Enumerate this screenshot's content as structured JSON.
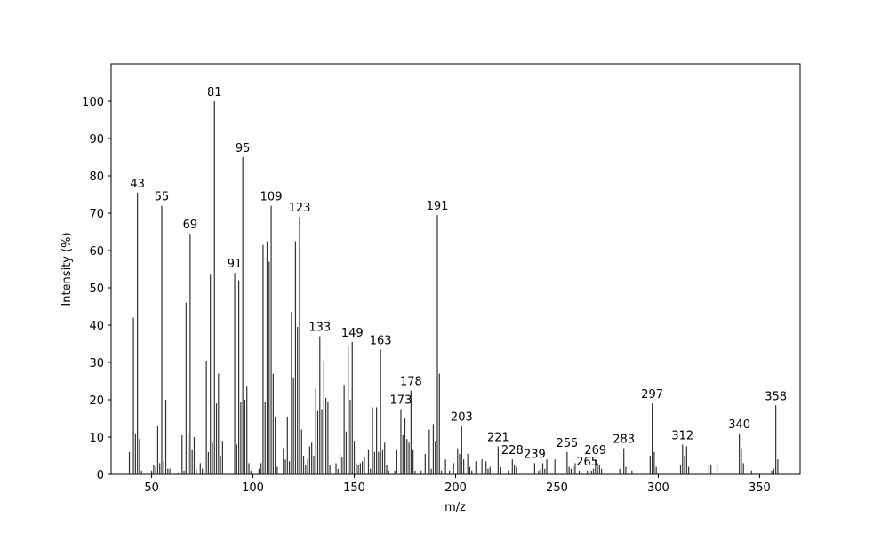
{
  "chart_data": {
    "type": "stem",
    "x_label": "m/z",
    "y_label": "Intensity (%)",
    "x": [
      39,
      41,
      42,
      43,
      44,
      45,
      50,
      51,
      52,
      53,
      54,
      55,
      56,
      57,
      58,
      59,
      63,
      65,
      66,
      67,
      68,
      69,
      70,
      71,
      72,
      74,
      75,
      77,
      78,
      79,
      80,
      81,
      82,
      83,
      84,
      85,
      91,
      92,
      93,
      94,
      95,
      96,
      97,
      98,
      99,
      103,
      104,
      105,
      106,
      107,
      108,
      109,
      110,
      111,
      112,
      115,
      116,
      117,
      118,
      119,
      120,
      121,
      122,
      123,
      124,
      125,
      126,
      127,
      128,
      129,
      130,
      131,
      132,
      133,
      134,
      135,
      136,
      137,
      138,
      141,
      142,
      143,
      144,
      145,
      146,
      147,
      148,
      149,
      150,
      151,
      152,
      153,
      154,
      155,
      157,
      158,
      159,
      160,
      161,
      162,
      163,
      164,
      165,
      166,
      167,
      170,
      171,
      173,
      174,
      175,
      176,
      177,
      178,
      179,
      180,
      183,
      185,
      187,
      188,
      189,
      190,
      191,
      192,
      193,
      195,
      197,
      199,
      201,
      202,
      203,
      204,
      206,
      207,
      208,
      210,
      213,
      215,
      216,
      217,
      221,
      222,
      226,
      228,
      229,
      230,
      239,
      241,
      242,
      243,
      244,
      245,
      249,
      255,
      256,
      257,
      258,
      259,
      261,
      265,
      267,
      268,
      269,
      270,
      271,
      272,
      281,
      283,
      284,
      287,
      296,
      297,
      298,
      299,
      311,
      312,
      313,
      314,
      315,
      325,
      326,
      329,
      340,
      341,
      342,
      346,
      356,
      357,
      358,
      359
    ],
    "values": [
      6,
      42,
      11,
      75.5,
      9.5,
      1,
      1,
      2.5,
      2,
      13,
      3,
      72,
      3.5,
      20,
      1.5,
      1.5,
      0.5,
      10.5,
      1,
      46,
      11,
      64.5,
      6.5,
      10,
      1.5,
      3,
      1.5,
      30.5,
      6,
      53.5,
      8.5,
      100,
      19,
      27,
      5,
      9,
      54,
      8,
      52,
      19.5,
      85,
      20,
      23.5,
      3,
      1,
      1.5,
      3,
      61.5,
      19.5,
      62.5,
      57,
      72,
      27,
      15.5,
      2,
      7,
      4,
      15.5,
      3.5,
      43.5,
      26,
      62.5,
      39.5,
      69,
      12,
      5,
      2.5,
      4,
      7.5,
      8.5,
      5,
      23,
      17,
      37,
      17.5,
      30.5,
      20.5,
      19.5,
      2.5,
      3,
      1.5,
      5.5,
      4.5,
      24,
      11.5,
      34.5,
      20,
      35.5,
      9,
      3,
      2.5,
      3,
      3.5,
      4.5,
      6.5,
      1.5,
      18,
      6,
      18,
      6,
      33.5,
      6.5,
      8.5,
      2.5,
      1,
      1,
      6.5,
      17.5,
      10.5,
      15,
      9.5,
      8.5,
      22.5,
      6.5,
      1,
      1,
      5.5,
      12,
      1.5,
      13.5,
      9,
      69.5,
      27,
      1,
      4,
      1,
      3,
      7,
      5.5,
      13,
      4,
      5.5,
      2,
      1,
      3.5,
      4,
      3.5,
      1.5,
      2,
      7.5,
      2,
      1,
      4,
      2.5,
      2,
      3,
      1,
      1.5,
      3,
      1.5,
      4,
      4,
      6,
      2,
      1.5,
      2,
      3,
      1,
      1,
      1,
      1.5,
      4,
      3,
      2.5,
      1.5,
      1.5,
      7,
      2,
      1,
      5,
      19,
      6,
      2,
      2.5,
      8,
      5,
      7.5,
      2,
      2.5,
      2.5,
      2.5,
      11,
      7,
      3,
      1,
      1,
      1.5,
      18.5,
      4
    ],
    "peak_labels": [
      43,
      55,
      69,
      81,
      91,
      95,
      109,
      123,
      133,
      149,
      163,
      173,
      178,
      191,
      203,
      221,
      228,
      239,
      255,
      265,
      269,
      283,
      297,
      312,
      340,
      358
    ],
    "color": "#333333",
    "xlim": [
      30,
      370
    ],
    "xticks": [
      50,
      100,
      150,
      200,
      250,
      300,
      350
    ],
    "ylim": [
      0,
      110
    ],
    "yticks": [
      0,
      10,
      20,
      30,
      40,
      50,
      60,
      70,
      80,
      90,
      100
    ]
  }
}
